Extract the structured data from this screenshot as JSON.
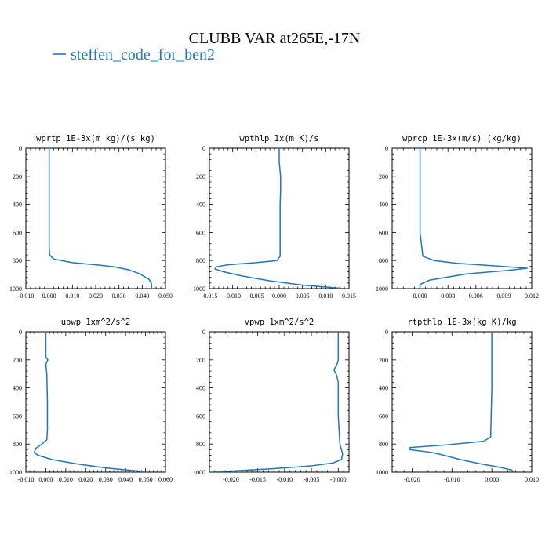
{
  "figure": {
    "title": "CLUBB VAR at265E,-17N",
    "legend_label": "steffen_code_for_ben2",
    "series_color": "#1f77b4"
  },
  "chart_data": [
    {
      "type": "line",
      "title": "wprtp  1E-3x(m kg)/(s kg)",
      "xlim": [
        -0.01,
        0.05
      ],
      "ylim": [
        1000,
        0
      ],
      "xticks": [
        -0.01,
        0.0,
        0.01,
        0.02,
        0.03,
        0.04,
        0.05
      ],
      "xtick_labels": [
        "-0.010",
        "0.000",
        "0.010",
        "0.020",
        "0.030",
        "0.040",
        "0.050"
      ],
      "yticks": [
        0,
        200,
        400,
        600,
        800,
        1000
      ],
      "series": [
        {
          "x": [
            0.0,
            0.0,
            0.0,
            0.0,
            0.0,
            0.0002,
            0.002,
            0.01,
            0.02,
            0.028,
            0.034,
            0.039,
            0.043,
            0.044,
            0.044
          ],
          "y": [
            0,
            200,
            400,
            600,
            700,
            760,
            790,
            815,
            830,
            845,
            865,
            895,
            935,
            965,
            1000
          ]
        }
      ]
    },
    {
      "type": "line",
      "title": "wpthlp  1x(m K)/s",
      "xlim": [
        -0.015,
        0.015
      ],
      "ylim": [
        1000,
        0
      ],
      "xticks": [
        -0.015,
        -0.01,
        -0.005,
        0.0,
        0.005,
        0.01,
        0.015
      ],
      "xtick_labels": [
        "-0.015",
        "-0.010",
        "-0.005",
        "0.000",
        "0.005",
        "0.010",
        "0.015"
      ],
      "yticks": [
        0,
        200,
        400,
        600,
        800,
        1000
      ],
      "series": [
        {
          "x": [
            0.0,
            0.0,
            0.0003,
            0.0003,
            0.0002,
            0.0002,
            0.0002,
            -0.0005,
            -0.005,
            -0.011,
            -0.0135,
            -0.0138,
            -0.012,
            -0.008,
            -0.002,
            0.005,
            0.014
          ],
          "y": [
            0,
            100,
            200,
            300,
            400,
            600,
            770,
            800,
            815,
            830,
            845,
            860,
            880,
            910,
            945,
            975,
            1000
          ]
        }
      ]
    },
    {
      "type": "line",
      "title": "wprcp  1E-3x(m/s) (kg/kg)",
      "xlim": [
        -0.003,
        0.012
      ],
      "ylim": [
        1000,
        0
      ],
      "xticks": [
        0.0,
        0.003,
        0.006,
        0.009,
        0.012
      ],
      "xtick_labels": [
        "0.000",
        "0.003",
        "0.006",
        "0.009",
        "0.012"
      ],
      "yticks": [
        0,
        200,
        400,
        600,
        800,
        1000
      ],
      "series": [
        {
          "x": [
            0.0,
            0.0,
            0.0,
            0.0,
            0.0003,
            0.0015,
            0.004,
            0.0085,
            0.0115,
            0.0095,
            0.005,
            0.001,
            0.0,
            0.0
          ],
          "y": [
            0,
            200,
            400,
            600,
            770,
            800,
            820,
            840,
            855,
            870,
            895,
            940,
            970,
            1000
          ]
        }
      ]
    },
    {
      "type": "line",
      "title": "upwp  1xm^2/s^2",
      "xlim": [
        -0.01,
        0.06
      ],
      "ylim": [
        1000,
        0
      ],
      "xticks": [
        -0.01,
        0.0,
        0.01,
        0.02,
        0.03,
        0.04,
        0.05,
        0.06
      ],
      "xtick_labels": [
        "-0.010",
        "0.000",
        "0.010",
        "0.020",
        "0.030",
        "0.040",
        "0.050",
        "0.060"
      ],
      "yticks": [
        0,
        200,
        400,
        600,
        800,
        1000
      ],
      "series": [
        {
          "x": [
            0.0,
            0.0,
            0.001,
            0.0,
            0.0005,
            0.0008,
            0.0008,
            0.0005,
            -0.002,
            -0.005,
            -0.0058,
            -0.004,
            0.003,
            0.015,
            0.03,
            0.045,
            0.05
          ],
          "y": [
            0,
            180,
            200,
            230,
            300,
            500,
            700,
            770,
            800,
            830,
            860,
            880,
            910,
            940,
            970,
            990,
            1000
          ]
        }
      ]
    },
    {
      "type": "line",
      "title": "vpwp  1xm^2/s^2",
      "xlim": [
        -0.024,
        0.002
      ],
      "ylim": [
        1000,
        0
      ],
      "xticks": [
        -0.02,
        -0.015,
        -0.01,
        -0.005,
        0.0
      ],
      "xtick_labels": [
        "-0.020",
        "-0.015",
        "-0.010",
        "-0.005",
        "-0.000"
      ],
      "yticks": [
        0,
        200,
        400,
        600,
        800,
        1000
      ],
      "series": [
        {
          "x": [
            0.0,
            0.0,
            -0.0003,
            -0.0008,
            -0.0003,
            0.0,
            0.0,
            0.0003,
            0.0008,
            0.0006,
            -0.001,
            -0.005,
            -0.012,
            -0.02,
            -0.024
          ],
          "y": [
            0,
            200,
            240,
            270,
            310,
            360,
            600,
            800,
            870,
            910,
            935,
            955,
            975,
            992,
            1000
          ]
        }
      ]
    },
    {
      "type": "line",
      "title": "rtpthlp  1E-3x(kg K)/kg",
      "xlim": [
        -0.025,
        0.01
      ],
      "ylim": [
        1000,
        0
      ],
      "xticks": [
        -0.02,
        -0.01,
        0.0,
        0.01
      ],
      "xtick_labels": [
        "-0.020",
        "-0.010",
        "0.000",
        "0.010"
      ],
      "yticks": [
        0,
        200,
        400,
        600,
        800,
        1000
      ],
      "series": [
        {
          "x": [
            0.0,
            0.0,
            0.0,
            -0.0003,
            -0.002,
            -0.011,
            -0.0205,
            -0.0205,
            -0.015,
            -0.012,
            -0.008,
            -0.003,
            0.002,
            0.005,
            0.0055
          ],
          "y": [
            0,
            200,
            400,
            750,
            780,
            805,
            825,
            840,
            860,
            880,
            910,
            940,
            965,
            985,
            1000
          ]
        }
      ]
    }
  ]
}
